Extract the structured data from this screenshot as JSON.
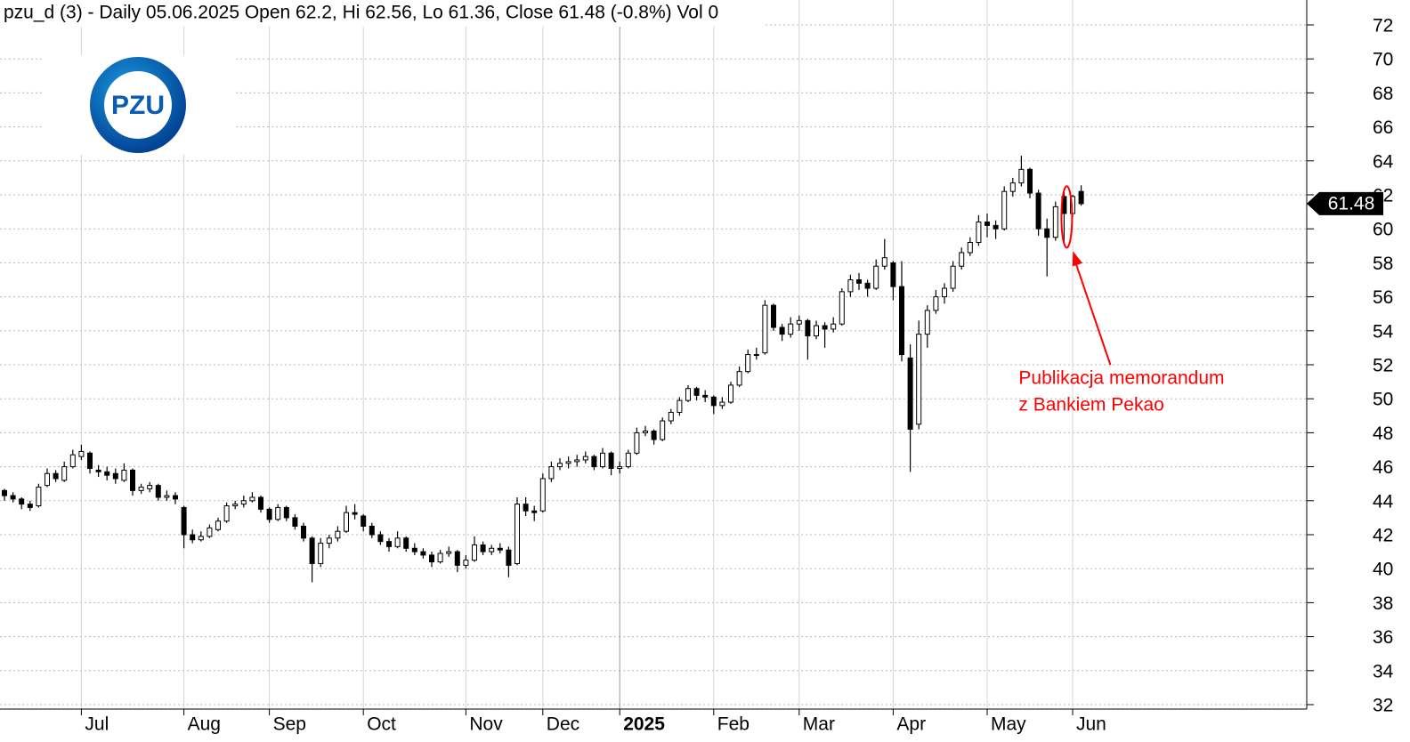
{
  "chart_data": {
    "type": "candlestick",
    "title": "pzu_d (3) - Daily 05.06.2025 Open 62.2, Hi 62.56, Lo 61.36, Close 61.48 (-0.8%) Vol 0",
    "logo": "PZU",
    "categories": [
      null,
      null,
      null,
      null,
      null,
      null,
      null,
      null,
      null,
      "Jul",
      null,
      null,
      null,
      null,
      null,
      null,
      null,
      null,
      null,
      null,
      null,
      "Aug",
      null,
      null,
      null,
      null,
      null,
      null,
      null,
      null,
      null,
      "Sep",
      null,
      null,
      null,
      null,
      null,
      null,
      null,
      null,
      null,
      null,
      "Oct",
      null,
      null,
      null,
      null,
      null,
      null,
      null,
      null,
      null,
      null,
      null,
      "Nov",
      null,
      null,
      null,
      null,
      null,
      null,
      null,
      null,
      "Dec",
      null,
      null,
      null,
      null,
      null,
      null,
      null,
      null,
      "2025",
      null,
      null,
      null,
      null,
      null,
      null,
      null,
      null,
      null,
      null,
      "Feb",
      null,
      null,
      null,
      null,
      null,
      null,
      null,
      null,
      null,
      "Mar",
      null,
      null,
      null,
      null,
      null,
      null,
      null,
      null,
      null,
      null,
      "Apr",
      null,
      null,
      null,
      null,
      null,
      null,
      null,
      null,
      null,
      null,
      "May",
      null,
      null,
      null,
      null,
      null,
      null,
      null,
      null,
      null,
      "Jun",
      null
    ],
    "open": [
      44.6,
      44.3,
      44.1,
      43.8,
      43.7,
      44.9,
      45.6,
      45.2,
      46.0,
      46.6,
      46.8,
      45.8,
      45.7,
      45.6,
      45.2,
      45.8,
      44.6,
      44.7,
      44.9,
      44.2,
      44.3,
      43.6,
      42.0,
      41.7,
      41.9,
      42.3,
      42.8,
      43.7,
      43.8,
      44.0,
      44.2,
      43.5,
      42.9,
      43.6,
      43.0,
      42.5,
      41.8,
      40.3,
      41.5,
      41.8,
      42.2,
      43.3,
      43.1,
      42.5,
      42.0,
      41.6,
      41.3,
      41.8,
      41.2,
      41.0,
      40.8,
      40.4,
      40.9,
      41.0,
      40.2,
      40.5,
      41.4,
      41.0,
      41.2,
      41.1,
      40.3,
      43.8,
      43.4,
      43.4,
      45.3,
      46.0,
      46.2,
      46.3,
      46.4,
      46.6,
      46.0,
      46.8,
      45.9,
      46.0,
      46.8,
      48.0,
      48.1,
      47.6,
      48.7,
      49.2,
      49.9,
      50.6,
      50.2,
      50.1,
      49.6,
      49.8,
      50.8,
      51.6,
      52.6,
      52.7,
      55.5,
      54.2,
      53.8,
      54.4,
      54.6,
      53.7,
      54.3,
      54.1,
      54.4,
      56.3,
      57.0,
      56.8,
      56.5,
      57.8,
      58.0,
      56.6,
      52.4,
      48.5,
      53.8,
      55.2,
      56.0,
      56.5,
      57.8,
      58.6,
      59.2,
      60.4,
      60.2,
      60.0,
      62.2,
      62.7,
      63.5,
      62.1,
      60.0,
      59.5,
      61.9,
      60.9,
      62.2
    ],
    "high": [
      44.7,
      44.5,
      44.2,
      44.0,
      45.0,
      45.9,
      45.8,
      46.3,
      47.0,
      47.3,
      46.9,
      46.1,
      46.0,
      45.9,
      46.2,
      45.9,
      45.0,
      45.1,
      45.0,
      44.6,
      44.5,
      43.7,
      42.3,
      42.2,
      42.6,
      43.0,
      43.9,
      44.0,
      44.3,
      44.5,
      44.3,
      43.6,
      43.8,
      43.7,
      43.2,
      42.7,
      41.9,
      41.8,
      42.0,
      42.5,
      43.7,
      43.8,
      43.2,
      42.7,
      42.2,
      41.8,
      42.2,
      41.9,
      41.5,
      41.2,
      41.0,
      41.1,
      41.3,
      41.1,
      40.8,
      41.9,
      41.6,
      41.4,
      41.5,
      41.3,
      44.2,
      44.2,
      43.7,
      45.6,
      46.3,
      46.5,
      46.6,
      46.7,
      46.9,
      46.7,
      47.1,
      46.9,
      46.3,
      47.0,
      48.3,
      48.4,
      48.2,
      48.9,
      49.4,
      50.1,
      50.8,
      50.7,
      50.5,
      50.2,
      50.1,
      51.0,
      51.9,
      52.9,
      53.0,
      55.8,
      55.6,
      54.4,
      54.8,
      54.9,
      54.7,
      54.6,
      54.5,
      54.8,
      56.5,
      57.3,
      57.4,
      57.0,
      58.2,
      59.4,
      58.1,
      58.1,
      53.2,
      54.6,
      55.5,
      56.4,
      56.8,
      58.1,
      58.9,
      59.5,
      60.8,
      60.9,
      60.5,
      62.5,
      63.0,
      64.3,
      63.6,
      62.3,
      60.6,
      61.6,
      62.3,
      62.0,
      62.56
    ],
    "low": [
      44.0,
      43.9,
      43.5,
      43.4,
      43.6,
      44.8,
      45.1,
      45.1,
      45.9,
      46.4,
      45.6,
      45.4,
      45.2,
      45.0,
      45.1,
      44.3,
      44.4,
      44.5,
      44.0,
      44.0,
      43.8,
      41.2,
      41.5,
      41.6,
      41.8,
      42.2,
      42.7,
      43.5,
      43.6,
      43.9,
      43.3,
      42.7,
      42.8,
      42.8,
      42.3,
      41.6,
      39.2,
      40.1,
      41.2,
      41.6,
      42.1,
      42.9,
      42.2,
      41.8,
      41.4,
      41.0,
      41.2,
      41.0,
      40.8,
      40.6,
      40.1,
      40.3,
      40.7,
      39.8,
      40.0,
      40.4,
      40.8,
      40.8,
      40.9,
      39.5,
      40.2,
      43.1,
      42.8,
      43.3,
      45.1,
      45.8,
      45.9,
      46.0,
      46.2,
      45.8,
      45.9,
      45.5,
      45.6,
      45.9,
      46.7,
      47.8,
      47.3,
      47.5,
      48.5,
      49.0,
      49.8,
      49.9,
      49.8,
      49.1,
      49.4,
      49.7,
      50.7,
      51.5,
      52.3,
      52.6,
      54.0,
      53.4,
      53.6,
      54.0,
      52.3,
      53.5,
      53.0,
      53.9,
      54.3,
      56.0,
      56.4,
      56.0,
      56.4,
      57.6,
      55.8,
      52.2,
      45.7,
      48.2,
      53.0,
      55.0,
      55.6,
      56.3,
      57.6,
      58.4,
      59.0,
      59.5,
      59.4,
      59.9,
      61.9,
      62.5,
      61.8,
      59.6,
      57.2,
      59.3,
      59.1,
      60.7,
      61.36
    ],
    "close": [
      44.3,
      44.1,
      43.8,
      43.6,
      44.8,
      45.6,
      45.3,
      46.0,
      46.7,
      46.9,
      45.9,
      45.7,
      45.5,
      45.3,
      45.8,
      44.6,
      44.8,
      44.9,
      44.2,
      44.3,
      44.1,
      42.0,
      41.7,
      41.9,
      42.4,
      42.8,
      43.7,
      43.8,
      44.0,
      44.2,
      43.5,
      42.9,
      43.6,
      43.0,
      42.5,
      41.8,
      40.3,
      41.5,
      41.8,
      42.2,
      43.3,
      43.2,
      42.5,
      42.0,
      41.6,
      41.3,
      41.8,
      41.2,
      41.0,
      40.8,
      40.4,
      40.9,
      41.0,
      40.2,
      40.5,
      41.4,
      41.0,
      41.2,
      41.1,
      40.2,
      43.8,
      43.4,
      43.3,
      45.3,
      46.0,
      46.2,
      46.3,
      46.4,
      46.6,
      46.0,
      46.8,
      45.9,
      46.0,
      46.8,
      48.0,
      48.1,
      47.6,
      48.7,
      49.2,
      49.9,
      50.6,
      50.2,
      50.1,
      49.6,
      49.8,
      50.8,
      51.6,
      52.6,
      52.6,
      55.5,
      54.2,
      53.8,
      54.4,
      54.6,
      53.7,
      54.3,
      54.1,
      54.4,
      56.3,
      57.0,
      56.8,
      56.5,
      57.8,
      58.3,
      56.6,
      52.6,
      48.2,
      53.8,
      55.2,
      56.0,
      56.5,
      57.8,
      58.6,
      59.2,
      60.4,
      60.2,
      60.0,
      62.2,
      62.7,
      63.5,
      62.1,
      60.0,
      59.5,
      61.3,
      60.9,
      61.9,
      61.48
    ],
    "color": "#000000",
    "ylim": [
      32,
      72
    ],
    "yticks": [
      32,
      34,
      36,
      38,
      40,
      42,
      44,
      46,
      48,
      50,
      52,
      54,
      56,
      58,
      60,
      62,
      64,
      66,
      68,
      70,
      72
    ],
    "grid": true,
    "annotation": {
      "lines": [
        "Publikacja memorandum",
        "z Bankiem Pekao"
      ],
      "color": "#ff0000",
      "index": 124
    }
  }
}
